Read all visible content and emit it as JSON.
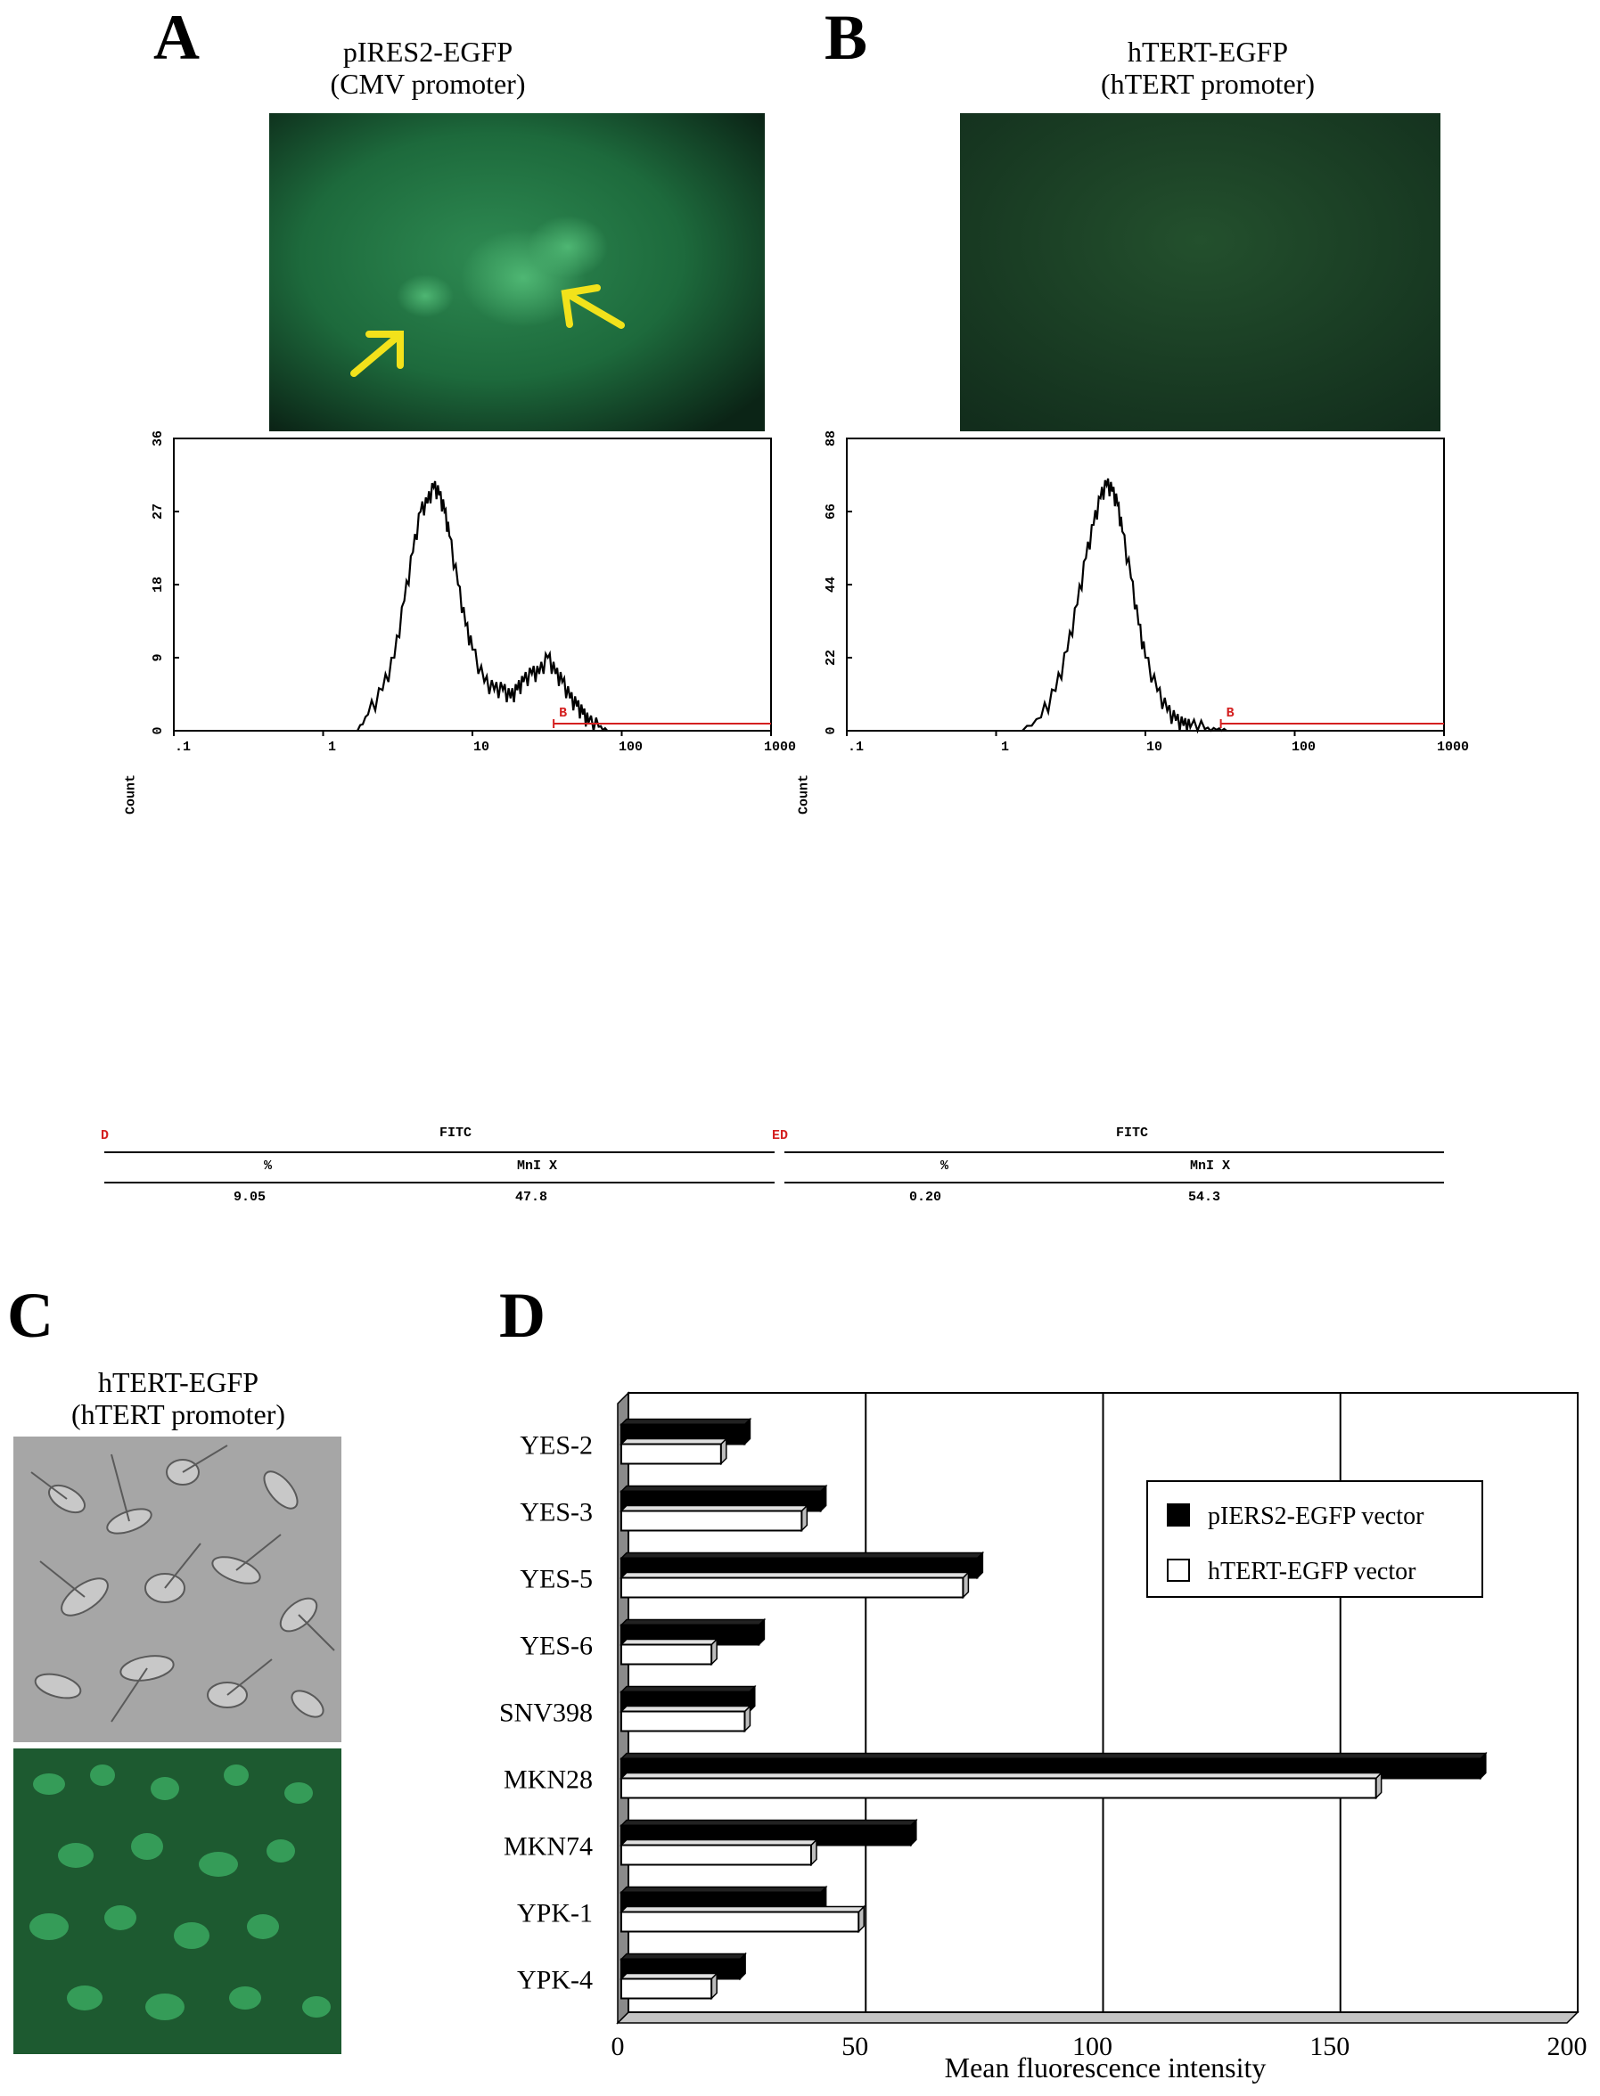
{
  "panels": {
    "a": {
      "letter": "A",
      "caption_line1": "pIRES2-EGFP",
      "caption_line2": "(CMV promoter)"
    },
    "b": {
      "letter": "B",
      "caption_line1": "hTERT-EGFP",
      "caption_line2": "(hTERT promoter)"
    },
    "c": {
      "letter": "C",
      "caption_line1": "hTERT-EGFP",
      "caption_line2": "(hTERT promoter)"
    },
    "d": {
      "letter": "D"
    }
  },
  "colors": {
    "fluor_bright": "#1e9a48",
    "fluor_dark": "#123a22",
    "arrow": "#f2e21b",
    "gate": "#d42020",
    "phase": "#9a9a9a",
    "bar_black": "#000000",
    "bar_white": "#ffffff"
  },
  "chart_data": [
    {
      "type": "line",
      "panel": "A",
      "xlabel": "FITC",
      "ylabel": "Count",
      "xscale": "log",
      "xlim": [
        0.1,
        1000
      ],
      "ylim": [
        0,
        36
      ],
      "x_ticks": [
        ".1",
        "1",
        "10",
        "100",
        "1000"
      ],
      "y_ticks": [
        "0",
        "9",
        "18",
        "27",
        "36"
      ],
      "gate_label": "B",
      "gate_range": [
        35,
        1000
      ],
      "marker_left": "D",
      "marker_right": "ED",
      "stats_headers": [
        "%",
        "MnI X"
      ],
      "stats_values": [
        "9.05",
        "47.8"
      ],
      "x": [
        1.7,
        2,
        2.5,
        3,
        3.5,
        4,
        4.5,
        5,
        5.5,
        6,
        6.5,
        7,
        8,
        9,
        10,
        12,
        14,
        16,
        18,
        20,
        22,
        25,
        28,
        32,
        36,
        40,
        45,
        50,
        55,
        60,
        70,
        80
      ],
      "y": [
        0,
        2,
        5,
        9,
        16,
        22,
        27,
        28,
        30,
        29,
        27,
        24,
        18,
        13,
        10,
        6,
        5,
        5,
        4,
        5,
        6,
        7,
        7,
        9,
        7,
        6,
        4,
        3,
        2,
        1,
        0.5,
        0
      ]
    },
    {
      "type": "line",
      "panel": "B",
      "xlabel": "FITC",
      "ylabel": "Count",
      "xscale": "log",
      "xlim": [
        0.1,
        1000
      ],
      "ylim": [
        0,
        88
      ],
      "x_ticks": [
        ".1",
        "1",
        "10",
        "100",
        "1000"
      ],
      "y_ticks": [
        "0",
        "22",
        "44",
        "66",
        "88"
      ],
      "gate_label": "B",
      "gate_range": [
        32,
        1000
      ],
      "stats_headers": [
        "%",
        "MnI X"
      ],
      "stats_values": [
        "0.20",
        "54.3"
      ],
      "x": [
        1.5,
        2,
        2.5,
        3,
        3.5,
        4,
        4.5,
        5,
        5.5,
        6,
        6.5,
        7,
        8,
        9,
        10,
        12,
        14,
        16,
        18,
        20,
        25,
        30,
        35
      ],
      "y": [
        0,
        4,
        12,
        24,
        38,
        52,
        62,
        70,
        74,
        72,
        68,
        60,
        46,
        32,
        22,
        12,
        6,
        3,
        1.5,
        1,
        0.5,
        0.3,
        0
      ]
    },
    {
      "type": "bar",
      "panel": "D",
      "orientation": "horizontal",
      "xlabel": "Mean fluorescence intensity",
      "xlim": [
        0,
        200
      ],
      "x_ticks": [
        "0",
        "50",
        "100",
        "150",
        "200"
      ],
      "categories": [
        "YES-2",
        "YES-3",
        "YES-5",
        "YES-6",
        "SNV398",
        "MKN28",
        "MKN74",
        "YPK-1",
        "YPK-4"
      ],
      "series": [
        {
          "name": "pIERS2-EGFP vector",
          "values": [
            26,
            42,
            75,
            29,
            27,
            181,
            61,
            42,
            25
          ]
        },
        {
          "name": "hTERT-EGFP vector",
          "values": [
            21,
            38,
            72,
            19,
            26,
            159,
            40,
            50,
            19
          ]
        }
      ],
      "legend_position": "top-right",
      "grid": true
    }
  ]
}
